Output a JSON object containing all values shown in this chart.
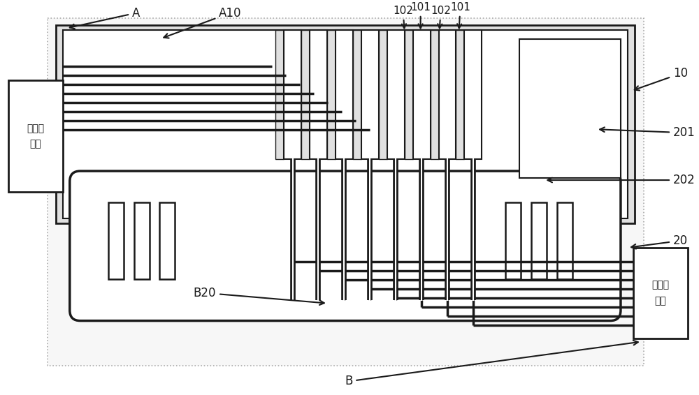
{
  "bg_color": "#ffffff",
  "line_color": "#1a1a1a",
  "gray_fill": "#c8c8c8",
  "light_gray": "#e0e0e0",
  "white": "#ffffff",
  "label_A": "A",
  "label_A10": "A10",
  "label_10": "10",
  "label_201": "201",
  "label_202": "202",
  "label_20": "20",
  "label_B": "B",
  "label_B20": "B20",
  "label_101": "101",
  "label_102": "102",
  "label_first_comm": "第一通\n信端",
  "label_second_comm": "第二通\n信端",
  "fig_width": 10.0,
  "fig_height": 5.66,
  "dpi": 100
}
